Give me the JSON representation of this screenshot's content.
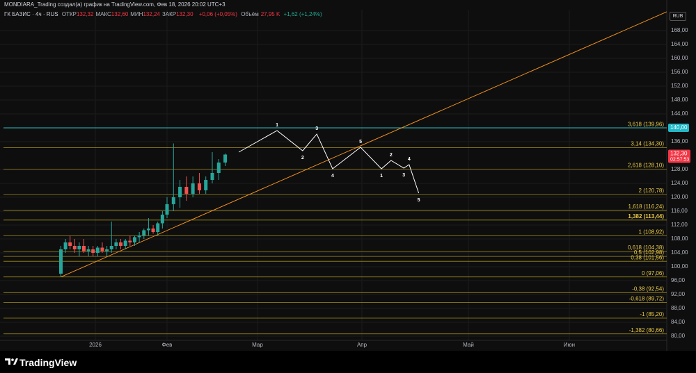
{
  "header": {
    "attribution": "MONDIARA_Trading создал(а) график на TradingView.com, Фев 18, 2026 20:02 UTC+3"
  },
  "legend": {
    "symbol": "ГК БАЗИС · 4ч · RUS",
    "items": [
      {
        "label": "ОТКР",
        "value": "132,32"
      },
      {
        "label": "МАКС",
        "value": "132,60"
      },
      {
        "label": "МИН",
        "value": "132,24"
      },
      {
        "label": "ЗАКР",
        "value": "132,30"
      }
    ],
    "change": "+0,06 (+0,05%)",
    "volume_label": "Объём",
    "volume": "27,95 K",
    "volume_change": "+1,62 (+1,24%)"
  },
  "currency": "RUB",
  "brand": "TradingView",
  "chart_data": {
    "type": "candlestick",
    "xlim": [
      -40,
      181
    ],
    "xticks": [
      {
        "value": 0,
        "label": "2026"
      },
      {
        "value": 31,
        "label": "Фев"
      },
      {
        "value": 59,
        "label": "Мар"
      },
      {
        "value": 90,
        "label": "Апр"
      },
      {
        "value": 120,
        "label": "Май"
      },
      {
        "value": 151,
        "label": "Июн"
      }
    ],
    "ylim": [
      77.2,
      172.4
    ],
    "yticks": [
      {
        "value": 168,
        "label": "168,00"
      },
      {
        "value": 164,
        "label": "164,00"
      },
      {
        "value": 160,
        "label": "160,00"
      },
      {
        "value": 156,
        "label": "156,00"
      },
      {
        "value": 152,
        "label": "152,00"
      },
      {
        "value": 148,
        "label": "148,00"
      },
      {
        "value": 144,
        "label": "144,00"
      },
      {
        "value": 136,
        "label": "136,00"
      },
      {
        "value": 128,
        "label": "128,00"
      },
      {
        "value": 124,
        "label": "124,00"
      },
      {
        "value": 120,
        "label": "120,00"
      },
      {
        "value": 116,
        "label": "116,00"
      },
      {
        "value": 112,
        "label": "112,00"
      },
      {
        "value": 108,
        "label": "108,00"
      },
      {
        "value": 104,
        "label": "104,00"
      },
      {
        "value": 100,
        "label": "100,00"
      },
      {
        "value": 96,
        "label": "96,00"
      },
      {
        "value": 92,
        "label": "92,00"
      },
      {
        "value": 88,
        "label": "88,00"
      },
      {
        "value": 84,
        "label": "84,00"
      },
      {
        "value": 80,
        "label": "80,00"
      }
    ],
    "grid": true,
    "up_color": "#26a69a",
    "down_color": "#ef5350",
    "candles": {
      "x": [
        -15,
        -13,
        -11,
        -9,
        -7,
        -5,
        -3,
        -1,
        1,
        3,
        5,
        7,
        9,
        11,
        13,
        15,
        17,
        19,
        21,
        23,
        25,
        27,
        29,
        31,
        33,
        35,
        37,
        39,
        41,
        43,
        45,
        47,
        49
      ],
      "open": [
        98,
        105,
        107,
        106,
        105,
        106,
        104.5,
        105,
        104,
        105.5,
        104.5,
        105,
        106,
        107,
        106,
        107.5,
        107,
        108.5,
        109,
        110.5,
        111,
        110,
        112.5,
        115,
        118,
        120,
        123,
        121,
        124,
        122,
        125,
        127,
        130
      ],
      "high": [
        106,
        108,
        109,
        108,
        107,
        108,
        106,
        106,
        106,
        107,
        106,
        113,
        108,
        108,
        108,
        109,
        109,
        110,
        111,
        114,
        112,
        113,
        116,
        120,
        135.5,
        125,
        126,
        126,
        127,
        126,
        133,
        131,
        132.6
      ],
      "low": [
        97.06,
        104,
        105,
        104,
        103,
        104,
        103,
        103,
        103,
        104,
        103,
        104,
        105,
        105,
        105,
        106,
        106,
        107,
        108,
        109,
        109.5,
        109,
        111,
        114,
        116,
        117,
        119,
        120,
        121,
        121,
        124,
        125,
        129
      ],
      "close": [
        105,
        107,
        106,
        105,
        106,
        104.5,
        105,
        104,
        105.5,
        104.5,
        105,
        106,
        107,
        106,
        107.5,
        107,
        108.5,
        109,
        110.5,
        111,
        110,
        112.5,
        115,
        118,
        120,
        123,
        121,
        124,
        122,
        125,
        127,
        130,
        132.3
      ]
    },
    "fib_color": "#a08c1c",
    "fib_label_color": "#e8c94a",
    "fib_levels": [
      {
        "value": 139.96,
        "label": "3,618 (139,96)"
      },
      {
        "value": 134.3,
        "label": "3,14 (134,30)"
      },
      {
        "value": 128.1,
        "label": "2,618 (128,10)"
      },
      {
        "value": 120.78,
        "label": "2 (120,78)"
      },
      {
        "value": 116.24,
        "label": "1,618 (116,24)"
      },
      {
        "value": 113.44,
        "label": "1,382 (113,44)"
      },
      {
        "value": 108.92,
        "label": "1 (108,92)"
      },
      {
        "value": 104.38,
        "label": "0,618 (104,38)"
      },
      {
        "value": 102.98,
        "label": "0,5 (102,98)"
      },
      {
        "value": 101.56,
        "label": "0,38 (101,56)"
      },
      {
        "value": 97.06,
        "label": "0 (97,06)"
      },
      {
        "value": 92.54,
        "label": "-0,38 (92,54)"
      },
      {
        "value": 89.72,
        "label": "-0,618 (89,72)"
      },
      {
        "value": 85.2,
        "label": "-1 (85,20)"
      },
      {
        "value": 80.66,
        "label": "-1,382 (80,66)"
      }
    ],
    "hline": {
      "value": 140,
      "label": "140,00",
      "color": "#22b8c8"
    },
    "last_price": {
      "value": 132.3,
      "label": "132,30",
      "countdown": "02:57:53",
      "color": "#f23645"
    },
    "trendline": {
      "x": [
        -15,
        181
      ],
      "y": [
        97.06,
        173.4
      ],
      "color": "#f0901e"
    },
    "wave": {
      "x": [
        53.2,
        64.8,
        72.4,
        76.6,
        81.3,
        89.6,
        95.5,
        98.2,
        101.8,
        103.3,
        106
      ],
      "y": [
        133,
        139.2,
        133.4,
        138.2,
        128.2,
        134.4,
        128.2,
        130.6,
        128.4,
        129.4,
        121.2
      ],
      "labels": [
        null,
        "1",
        "2",
        "3",
        "4",
        "5",
        "1",
        "2",
        "3",
        "4",
        "5"
      ],
      "color": "#ffffff"
    }
  }
}
